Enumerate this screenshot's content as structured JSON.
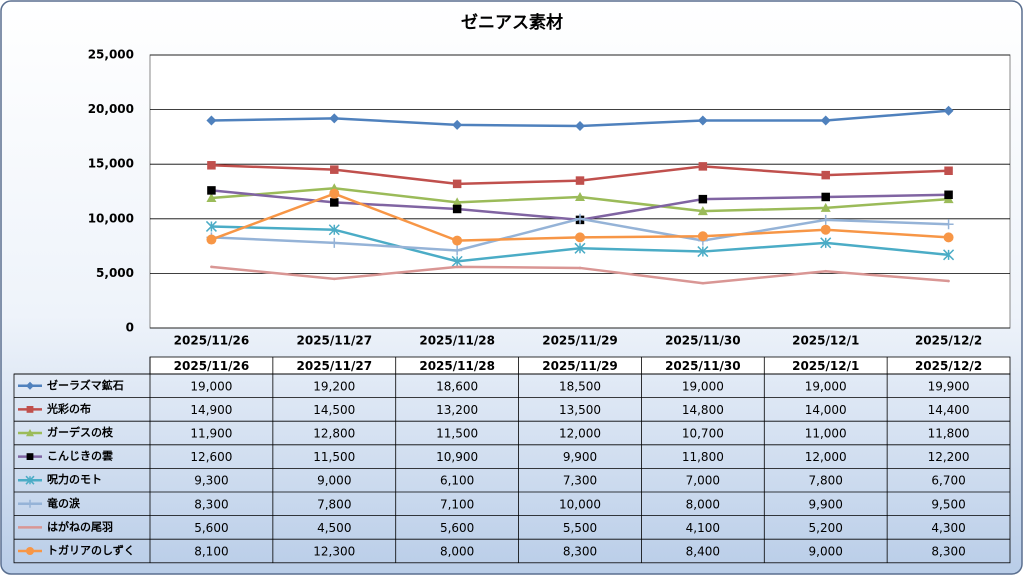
{
  "chart_data": {
    "type": "line",
    "title": "ゼニアス素材",
    "categories": [
      "2025/11/26",
      "2025/11/27",
      "2025/11/28",
      "2025/11/29",
      "2025/11/30",
      "2025/12/1",
      "2025/12/2"
    ],
    "ylim": [
      0,
      25000
    ],
    "yticks": [
      0,
      {
        "value": 5000,
        "label": "5,000"
      },
      {
        "value": 10000,
        "label": "10,000"
      },
      {
        "value": 15000,
        "label": "15,000"
      },
      {
        "value": 20000,
        "label": "20,000"
      },
      {
        "value": 25000,
        "label": "25,000"
      }
    ],
    "grid": true,
    "series": [
      {
        "name": "ゼーラズマ鉱石",
        "color": "#4f81bd",
        "marker": "diamond",
        "values": [
          19000,
          19200,
          18600,
          18500,
          19000,
          19000,
          19900
        ],
        "value_labels": [
          "19,000",
          "19,200",
          "18,600",
          "18,500",
          "19,000",
          "19,000",
          "19,900"
        ]
      },
      {
        "name": "光彩の布",
        "color": "#c0504d",
        "marker": "square",
        "values": [
          14900,
          14500,
          13200,
          13500,
          14800,
          14000,
          14400
        ],
        "value_labels": [
          "14,900",
          "14,500",
          "13,200",
          "13,500",
          "14,800",
          "14,000",
          "14,400"
        ]
      },
      {
        "name": "ガーデスの枝",
        "color": "#9bbb59",
        "marker": "triangle",
        "values": [
          11900,
          12800,
          11500,
          12000,
          10700,
          11000,
          11800
        ],
        "value_labels": [
          "11,900",
          "12,800",
          "11,500",
          "12,000",
          "10,700",
          "11,000",
          "11,800"
        ]
      },
      {
        "name": "こんじきの雲",
        "color": "#8064a2",
        "marker": "square",
        "marker_color": "#000000",
        "values": [
          12600,
          11500,
          10900,
          9900,
          11800,
          12000,
          12200
        ],
        "value_labels": [
          "12,600",
          "11,500",
          "10,900",
          "9,900",
          "11,800",
          "12,000",
          "12,200"
        ]
      },
      {
        "name": "呪力のモト",
        "color": "#4bacc6",
        "marker": "asterisk",
        "values": [
          9300,
          9000,
          6100,
          7300,
          7000,
          7800,
          6700
        ],
        "value_labels": [
          "9,300",
          "9,000",
          "6,100",
          "7,300",
          "7,000",
          "7,800",
          "6,700"
        ]
      },
      {
        "name": "竜の涙",
        "color": "#95b3d7",
        "marker": "plus",
        "values": [
          8300,
          7800,
          7100,
          10000,
          8000,
          9900,
          9500
        ],
        "value_labels": [
          "8,300",
          "7,800",
          "7,100",
          "10,000",
          "8,000",
          "9,900",
          "9,500"
        ]
      },
      {
        "name": "はがねの尾羽",
        "color": "#d99694",
        "marker": "none",
        "values": [
          5600,
          4500,
          5600,
          5500,
          4100,
          5200,
          4300
        ],
        "value_labels": [
          "5,600",
          "4,500",
          "5,600",
          "5,500",
          "4,100",
          "5,200",
          "4,300"
        ]
      },
      {
        "name": "トガリアのしずく",
        "color": "#f79646",
        "marker": "circle",
        "values": [
          8100,
          12300,
          8000,
          8300,
          8400,
          9000,
          8300
        ],
        "value_labels": [
          "8,100",
          "12,300",
          "8,000",
          "8,300",
          "8,400",
          "9,000",
          "8,300"
        ]
      }
    ]
  }
}
